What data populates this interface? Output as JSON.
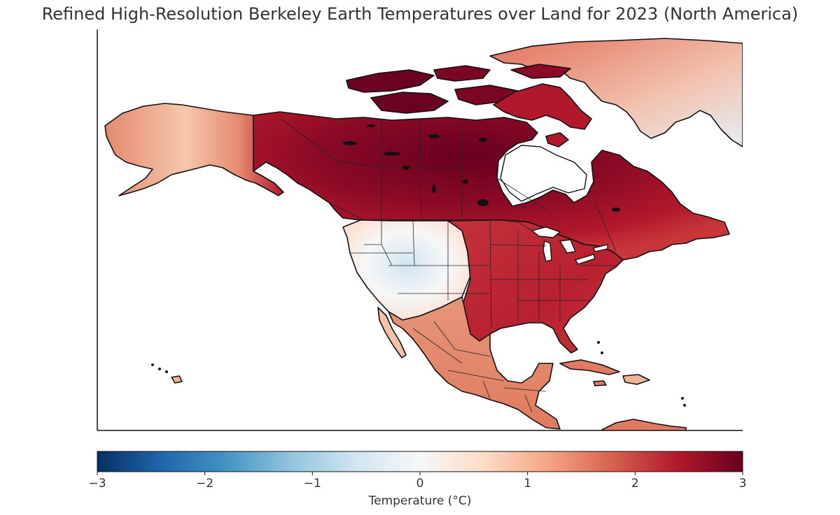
{
  "title": "Refined High-Resolution Berkeley Earth Temperatures over Land for 2023 (North America)",
  "colorbar": {
    "label": "Temperature (°C)",
    "min": -3,
    "max": 3,
    "ticks": [
      {
        "value": -3,
        "label": "−3"
      },
      {
        "value": -2,
        "label": "−2"
      },
      {
        "value": -1,
        "label": "−1"
      },
      {
        "value": 0,
        "label": "0"
      },
      {
        "value": 1,
        "label": "1"
      },
      {
        "value": 2,
        "label": "2"
      },
      {
        "value": 3,
        "label": "3"
      }
    ],
    "colormap": "RdBu_r",
    "colors": [
      "#053061",
      "#2166ac",
      "#4393c3",
      "#92c5de",
      "#d1e5f0",
      "#f7f7f7",
      "#fddbc7",
      "#f4a582",
      "#d6604d",
      "#b2182b",
      "#67001f"
    ]
  },
  "map_data": {
    "region": "North America",
    "year": 2023,
    "variable": "Temperature anomaly over land",
    "regions": [
      {
        "name": "Alaska",
        "value": 0.9
      },
      {
        "name": "Canadian Arctic Archipelago",
        "value": 3.0
      },
      {
        "name": "Northwest Territories / Nunavut",
        "value": 2.9
      },
      {
        "name": "Prairie Provinces",
        "value": 2.8
      },
      {
        "name": "Ontario / Quebec",
        "value": 2.2
      },
      {
        "name": "Greenland",
        "value": 1.6
      },
      {
        "name": "US West",
        "value": -0.4
      },
      {
        "name": "US Pacific Northwest",
        "value": 1.0
      },
      {
        "name": "US Great Plains",
        "value": 1.3
      },
      {
        "name": "US Midwest / Northeast",
        "value": 2.1
      },
      {
        "name": "US Southeast",
        "value": 2.0
      },
      {
        "name": "Mexico",
        "value": 1.5
      },
      {
        "name": "Central America",
        "value": 1.3
      },
      {
        "name": "Caribbean",
        "value": 1.6
      }
    ]
  }
}
